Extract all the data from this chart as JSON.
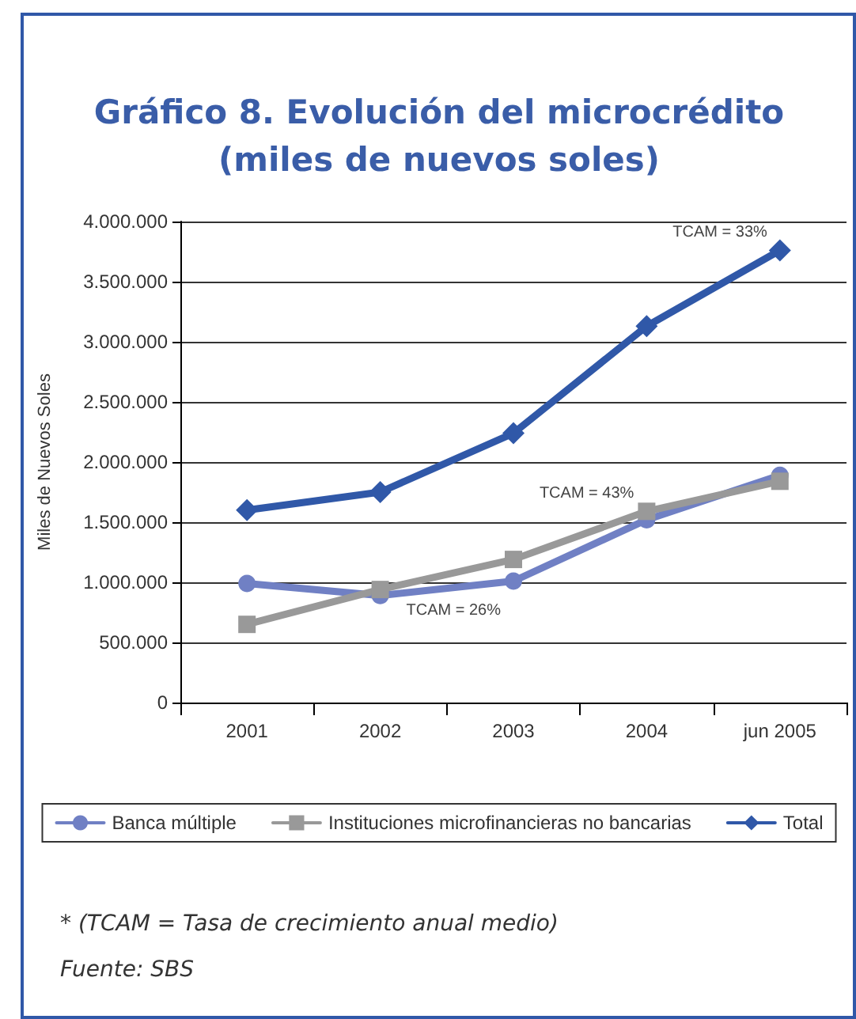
{
  "chart_data": {
    "type": "line",
    "title": "Gráfico 8. Evolución del microcrédito\n(miles de nuevos soles)",
    "ylabel": "Miles de Nuevos Soles",
    "categories": [
      "2001",
      "2002",
      "2003",
      "2004",
      "jun 2005"
    ],
    "series": [
      {
        "name": "Banca múltiple",
        "color": "#7080c4",
        "marker": "circle",
        "values": [
          990000,
          890000,
          1010000,
          1520000,
          1890000
        ]
      },
      {
        "name": "Instituciones microfinancieras no bancarias",
        "color": "#999999",
        "marker": "square",
        "values": [
          650000,
          940000,
          1190000,
          1590000,
          1840000
        ]
      },
      {
        "name": "Total",
        "color": "#3058a8",
        "marker": "diamond",
        "values": [
          1600000,
          1750000,
          2240000,
          3130000,
          3760000
        ]
      }
    ],
    "ylim": [
      0,
      4000000
    ],
    "yticks": [
      {
        "value": 0,
        "label": "0"
      },
      {
        "value": 500000,
        "label": "500.000"
      },
      {
        "value": 1000000,
        "label": "1.000.000"
      },
      {
        "value": 1500000,
        "label": "1.500.000"
      },
      {
        "value": 2000000,
        "label": "2.000.000"
      },
      {
        "value": 2500000,
        "label": "2.500.000"
      },
      {
        "value": 3000000,
        "label": "3.000.000"
      },
      {
        "value": 3500000,
        "label": "3.500.000"
      },
      {
        "value": 4000000,
        "label": "4.000.000"
      }
    ],
    "grid": "y",
    "legend": "bottom",
    "line_style": "solid",
    "annotations": [
      {
        "text": "TCAM = 33%",
        "x": "jun 2005",
        "y": 3760000
      },
      {
        "text": "TCAM = 43%",
        "x": "2004",
        "y": 1590000
      },
      {
        "text": "TCAM = 26%",
        "x": "2003",
        "y": 1010000
      },
      "* (TCAM = Tasa de crecimiento anual medio)",
      "Fuente: SBS"
    ]
  }
}
